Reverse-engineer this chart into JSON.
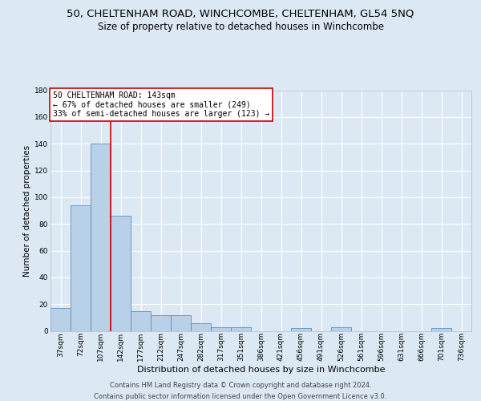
{
  "title_line1": "50, CHELTENHAM ROAD, WINCHCOMBE, CHELTENHAM, GL54 5NQ",
  "title_line2": "Size of property relative to detached houses in Winchcombe",
  "xlabel": "Distribution of detached houses by size in Winchcombe",
  "ylabel": "Number of detached properties",
  "footer_line1": "Contains HM Land Registry data © Crown copyright and database right 2024.",
  "footer_line2": "Contains public sector information licensed under the Open Government Licence v3.0.",
  "bar_labels": [
    "37sqm",
    "72sqm",
    "107sqm",
    "142sqm",
    "177sqm",
    "212sqm",
    "247sqm",
    "282sqm",
    "317sqm",
    "351sqm",
    "386sqm",
    "421sqm",
    "456sqm",
    "491sqm",
    "526sqm",
    "561sqm",
    "596sqm",
    "631sqm",
    "666sqm",
    "701sqm",
    "736sqm"
  ],
  "bar_values": [
    17,
    94,
    140,
    86,
    15,
    12,
    12,
    6,
    3,
    3,
    0,
    0,
    2,
    0,
    3,
    0,
    0,
    0,
    0,
    2,
    0
  ],
  "bar_color": "#b8d0e8",
  "bar_edge_color": "#5a90c0",
  "property_line_label": "50 CHELTENHAM ROAD: 143sqm",
  "annotation_line1": "← 67% of detached houses are smaller (249)",
  "annotation_line2": "33% of semi-detached houses are larger (123) →",
  "vline_color": "#cc0000",
  "vline_x_index": 2.5,
  "ylim": [
    0,
    180
  ],
  "yticks": [
    0,
    20,
    40,
    60,
    80,
    100,
    120,
    140,
    160,
    180
  ],
  "background_color": "#dce9f5",
  "grid_color": "#ffffff",
  "title1_fontsize": 9.5,
  "title2_fontsize": 8.5,
  "xlabel_fontsize": 8,
  "ylabel_fontsize": 7.5,
  "tick_fontsize": 6.5,
  "annot_fontsize": 7,
  "footer_fontsize": 6
}
